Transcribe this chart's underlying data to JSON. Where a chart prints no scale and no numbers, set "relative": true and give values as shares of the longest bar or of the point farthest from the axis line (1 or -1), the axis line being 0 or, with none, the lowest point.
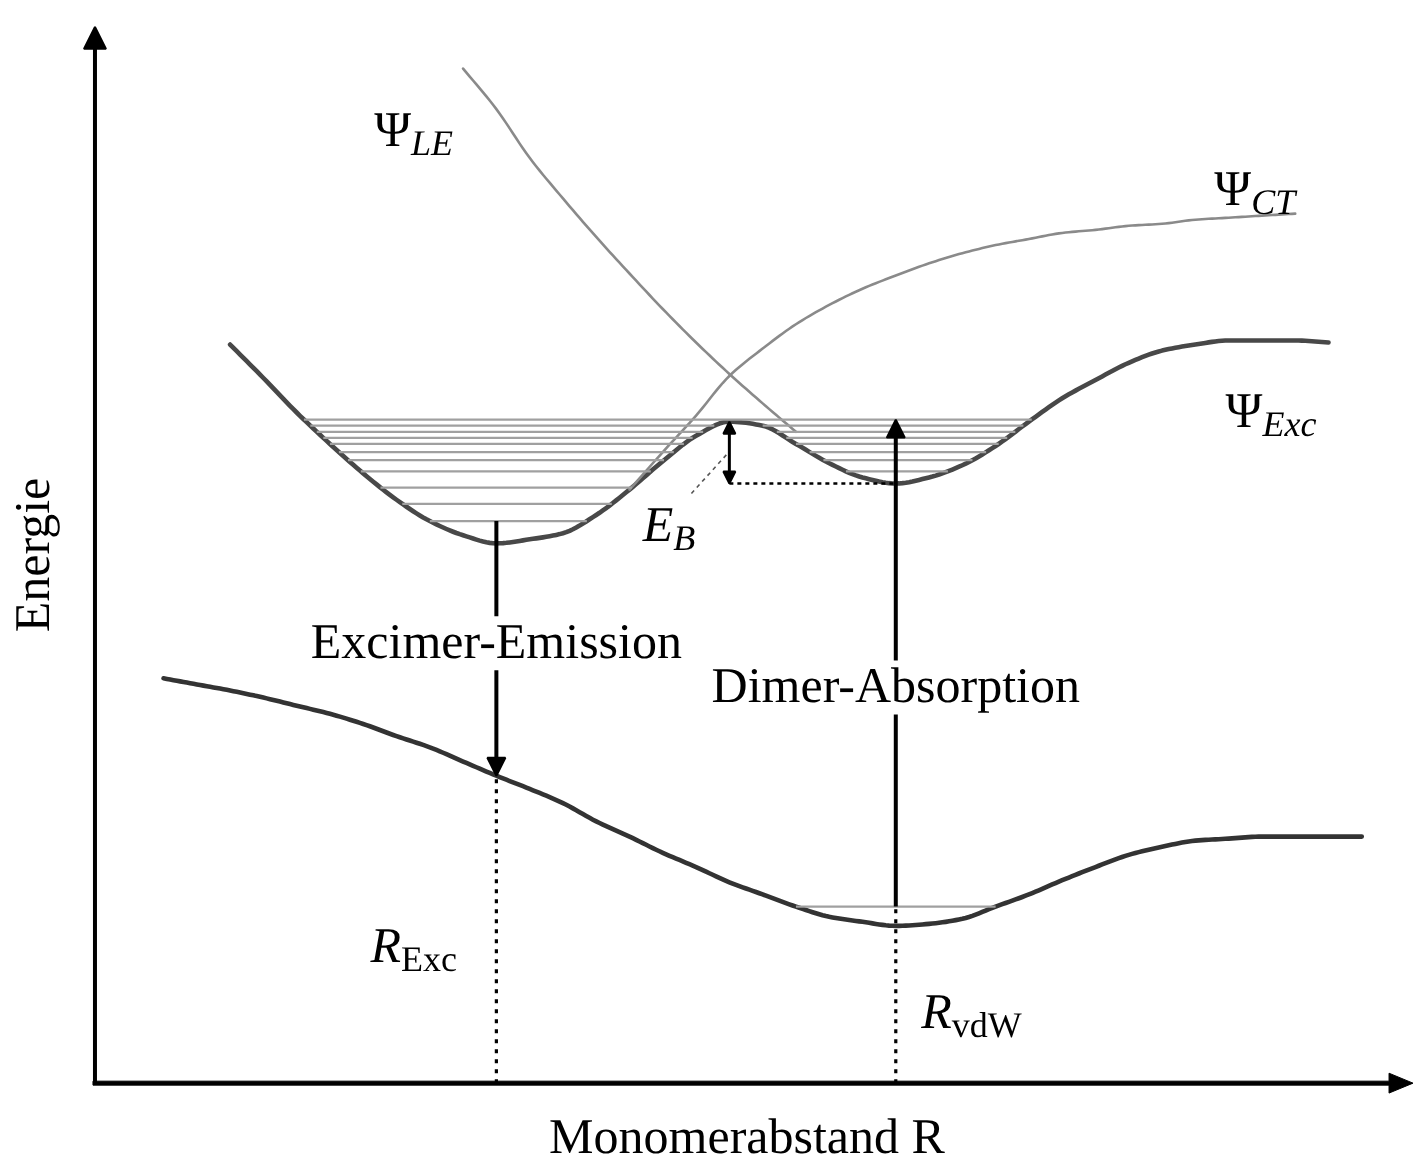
{
  "chart_data": {
    "type": "line",
    "relative": true,
    "xlabel": "Monomerabstand R",
    "ylabel": "Energie",
    "categories": [
      null,
      null,
      null,
      null,
      null,
      null,
      null,
      null,
      null,
      null,
      null,
      null,
      null,
      null,
      null,
      null,
      null,
      null,
      null,
      null,
      null,
      null,
      null,
      null,
      null,
      null,
      null,
      null,
      null,
      null,
      null,
      null,
      null,
      null,
      null,
      null,
      null
    ],
    "series": [
      {
        "color": "#333333",
        "values": [
          0.399,
          0.393,
          0.387,
          0.38,
          0.372,
          0.364,
          0.354,
          0.342,
          0.331,
          0.317,
          0.303,
          0.29,
          0.276,
          0.258,
          0.243,
          0.227,
          0.213,
          0.198,
          0.186,
          0.174,
          0.164,
          0.159,
          0.155,
          0.157,
          0.162,
          0.174,
          0.186,
          0.2,
          0.213,
          0.225,
          0.233,
          0.239,
          0.241,
          0.243,
          0.243,
          0.243,
          0.243
        ]
      },
      {
        "name": "Ψ$_{Exc}$",
        "color": "#484848",
        "values": [
          null,
          null,
          0.728,
          0.695,
          0.661,
          0.63,
          0.601,
          0.575,
          0.554,
          0.54,
          0.532,
          0.536,
          0.542,
          0.56,
          0.585,
          0.613,
          0.638,
          0.652,
          0.648,
          0.63,
          0.611,
          0.597,
          0.591,
          0.597,
          0.609,
          0.628,
          0.652,
          0.675,
          0.693,
          0.71,
          0.722,
          0.728,
          0.732,
          0.732,
          0.732,
          0.73,
          null
        ]
      },
      {
        "name": "Ψ$_{LE}$",
        "color": "#8a8a8a",
        "values": [
          null,
          null,
          null,
          null,
          null,
          null,
          null,
          null,
          null,
          1.0,
          0.96,
          0.912,
          0.872,
          0.834,
          0.798,
          0.763,
          0.73,
          0.699,
          0.67,
          0.642,
          null,
          null,
          null,
          null,
          null,
          null,
          null,
          null,
          null,
          null,
          null,
          null,
          null,
          null,
          null,
          null,
          null
        ]
      },
      {
        "name": "Ψ$_{CT}$",
        "color": "#8a8a8a",
        "values": [
          null,
          null,
          null,
          null,
          null,
          null,
          null,
          null,
          null,
          null,
          null,
          null,
          null,
          null,
          0.585,
          0.622,
          0.658,
          0.697,
          0.724,
          0.748,
          0.767,
          0.783,
          0.796,
          0.808,
          0.818,
          0.826,
          0.832,
          0.838,
          0.841,
          0.845,
          0.847,
          0.851,
          0.853,
          0.855,
          0.857,
          null,
          null
        ]
      }
    ],
    "ref_lines": [
      {
        "axis": "y",
        "value": 0.654,
        "color": "#a0a0a0"
      },
      {
        "axis": "y",
        "value": 0.648,
        "color": "#a0a0a0"
      },
      {
        "axis": "y",
        "value": 0.642,
        "color": "#a0a0a0"
      },
      {
        "axis": "y",
        "value": 0.636,
        "color": "#a0a0a0"
      },
      {
        "axis": "y",
        "value": 0.63,
        "color": "#a0a0a0"
      },
      {
        "axis": "y",
        "value": 0.622,
        "color": "#a0a0a0"
      },
      {
        "axis": "y",
        "value": 0.614,
        "color": "#a0a0a0"
      },
      {
        "axis": "y",
        "value": 0.603,
        "color": "#a0a0a0"
      },
      {
        "axis": "y",
        "value": 0.587,
        "color": "#a0a0a0"
      },
      {
        "axis": "y",
        "value": 0.571,
        "color": "#a0a0a0"
      },
      {
        "axis": "y",
        "value": 0.554,
        "color": "#a0a0a0"
      },
      {
        "axis": "y",
        "value": 0.174,
        "color": "#a0a0a0"
      }
    ],
    "annotations": [
      "Excimer-Emission",
      "Dimer-Absorption",
      "E$_{B}$",
      "R$_{Exc}$",
      "R$_{vdW}$"
    ]
  }
}
